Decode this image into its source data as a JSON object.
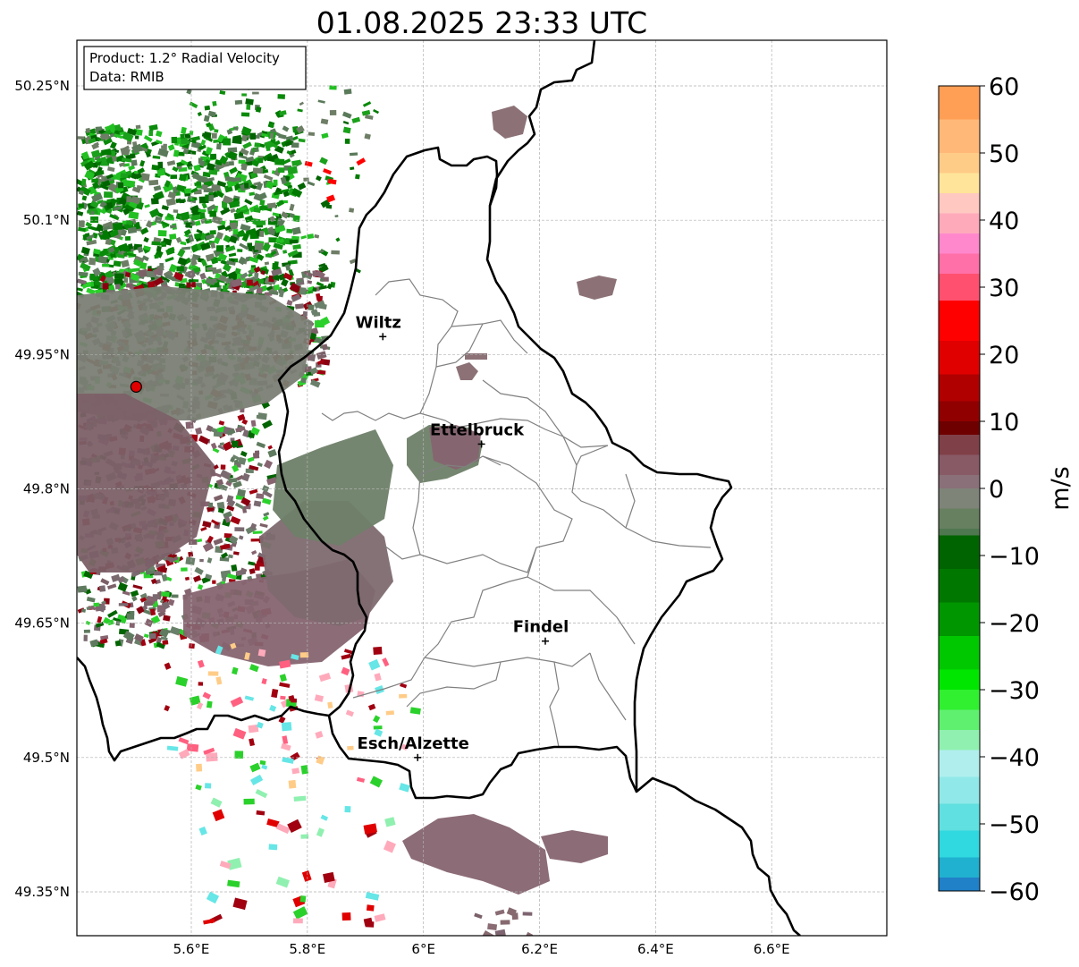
{
  "title": "01.08.2025 23:33 UTC",
  "info_box": {
    "product": "Product: 1.2° Radial Velocity",
    "data": "Data: RMIB"
  },
  "map": {
    "lon_ticks": [
      "5.6°E",
      "5.8°E",
      "6°E",
      "6.2°E",
      "6.4°E",
      "6.6°E"
    ],
    "lat_ticks": [
      "50.25°N",
      "50.1°N",
      "49.95°N",
      "49.8°N",
      "49.65°N",
      "49.5°N",
      "49.35°N"
    ],
    "cities": [
      {
        "name": "Wiltz",
        "lon": 5.93,
        "lat": 49.97
      },
      {
        "name": "Ettelbruck",
        "lon": 6.1,
        "lat": 49.85
      },
      {
        "name": "Findel",
        "lon": 6.21,
        "lat": 49.63
      },
      {
        "name": "Esch/Alzette",
        "lon": 5.99,
        "lat": 49.5
      }
    ],
    "radar_site": {
      "lon": 5.505,
      "lat": 49.914
    },
    "grid": true
  },
  "colorbar": {
    "label": "m/s",
    "ticks": [
      "60",
      "50",
      "40",
      "30",
      "20",
      "10",
      "0",
      "−10",
      "−20",
      "−30",
      "−40",
      "−50",
      "−60"
    ],
    "min": -60,
    "max": 60
  },
  "colors": {
    "radar_site": "#e00000",
    "border": "#000000",
    "canton": "#808080",
    "grid": "#b0b0b0"
  }
}
